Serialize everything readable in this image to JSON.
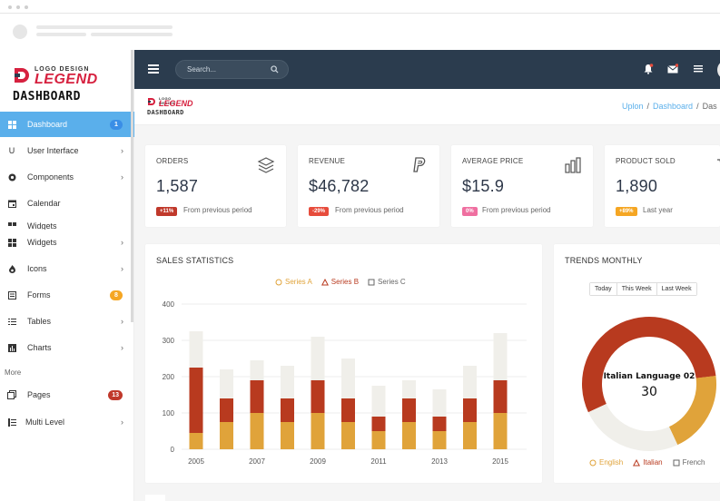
{
  "sidebar": {
    "logo_small": "LOGO DESIGN",
    "logo_big": "LEGEND",
    "logo_title": "DASHBOARD",
    "items": [
      {
        "label": "Dashboard",
        "badge": "1",
        "badge_color": "#3a8ee6"
      },
      {
        "label": "User Interface"
      },
      {
        "label": "Components"
      },
      {
        "label": "Calendar"
      },
      {
        "label": "Widgets"
      },
      {
        "label": "Widgets"
      },
      {
        "label": "Icons"
      },
      {
        "label": "Forms",
        "badge": "8",
        "badge_color": "#f5a623"
      },
      {
        "label": "Tables"
      },
      {
        "label": "Charts"
      },
      {
        "label": "Pages",
        "badge": "13",
        "badge_color": "#c0392b"
      },
      {
        "label": "Multi Level"
      }
    ],
    "more_label": "More"
  },
  "navbar": {
    "search_placeholder": "Search..."
  },
  "page_header": {
    "logo_small": "LOGO DESIGN",
    "logo_big": "LEGEND",
    "logo_title": "DASHBOARD",
    "breadcrumb": [
      "Uplon",
      "Dashboard",
      "Das"
    ]
  },
  "stats": [
    {
      "title": "ORDERS",
      "value": "1,587",
      "badge": "+11%",
      "badge_color": "#c0392b",
      "note": "From previous period",
      "icon": "layers-icon"
    },
    {
      "title": "REVENUE",
      "value": "$46,782",
      "badge": "-29%",
      "badge_color": "#e74c3c",
      "note": "From previous period",
      "icon": "paypal-icon"
    },
    {
      "title": "AVERAGE PRICE",
      "value": "$15.9",
      "badge": "0%",
      "badge_color": "#ef6fa0",
      "note": "From previous period",
      "icon": "bar-chart-icon"
    },
    {
      "title": "PRODUCT SOLD",
      "value": "1,890",
      "badge": "+89%",
      "badge_color": "#f5a623",
      "note": "Last year",
      "icon": "cart-icon"
    }
  ],
  "sales_panel": {
    "title": "SALES STATISTICS",
    "legend": [
      "Series A",
      "Series B",
      "Series C"
    ]
  },
  "trends_panel": {
    "title": "TRENDS MONTHLY",
    "tabs": [
      "Today",
      "This Week",
      "Last Week"
    ],
    "center_label": "Italian Language 02",
    "center_value": "30",
    "legend": [
      "English",
      "Italian",
      "French"
    ]
  },
  "chart_data": [
    {
      "type": "bar",
      "stacked": true,
      "categories": [
        "2005",
        "2006",
        "2007",
        "2008",
        "2009",
        "2010",
        "2011",
        "2012",
        "2013",
        "2014",
        "2015"
      ],
      "x_tick_labels": [
        "2005",
        "2007",
        "2009",
        "2011",
        "2013",
        "2015"
      ],
      "series": [
        {
          "name": "Series A",
          "color": "#e0a33a",
          "values": [
            45,
            75,
            100,
            75,
            100,
            75,
            50,
            75,
            50,
            75,
            100
          ]
        },
        {
          "name": "Series B",
          "color": "#b83a1f",
          "values": [
            180,
            65,
            90,
            65,
            90,
            65,
            40,
            65,
            40,
            65,
            90
          ]
        },
        {
          "name": "Series C",
          "color": "#f0efea",
          "values": [
            100,
            80,
            55,
            90,
            120,
            110,
            85,
            50,
            75,
            90,
            130
          ]
        }
      ],
      "ylim": [
        0,
        400
      ],
      "yticks": [
        0,
        100,
        200,
        300,
        400
      ],
      "legend_position": "top-center"
    },
    {
      "type": "pie",
      "donut": true,
      "labels": [
        "English",
        "Italian",
        "French"
      ],
      "values": [
        20,
        55,
        25
      ],
      "colors": [
        "#e0a33a",
        "#b83a1f",
        "#f0efea"
      ],
      "legend_position": "bottom"
    }
  ]
}
